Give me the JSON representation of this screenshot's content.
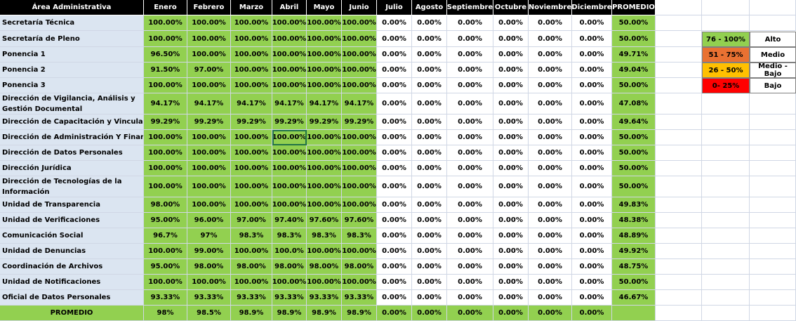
{
  "header": {
    "area": "Área Administrativa",
    "months": [
      "Enero",
      "Febrero",
      "Marzo",
      "Abril",
      "Mayo",
      "Junio",
      "Julio",
      "Agosto",
      "Septiembre",
      "Octubre",
      "Noviembre",
      "Diciembre"
    ],
    "promedio": "PROMEDIO"
  },
  "rows": [
    {
      "area": "Secretaría Técnica",
      "values": [
        "100.00%",
        "100.00%",
        "100.00%",
        "100.00%",
        "100.00%",
        "100.00%",
        "0.00%",
        "0.00%",
        "0.00%",
        "0.00%",
        "0.00%",
        "0.00%"
      ],
      "avg": "50.00%"
    },
    {
      "area": "Secretaría de Pleno",
      "values": [
        "100.00%",
        "100.00%",
        "100.00%",
        "100.00%",
        "100.00%",
        "100.00%",
        "0.00%",
        "0.00%",
        "0.00%",
        "0.00%",
        "0.00%",
        "0.00%"
      ],
      "avg": "50.00%"
    },
    {
      "area": "Ponencia 1",
      "values": [
        "96.50%",
        "100.00%",
        "100.00%",
        "100.00%",
        "100.00%",
        "100.00%",
        "0.00%",
        "0.00%",
        "0.00%",
        "0.00%",
        "0.00%",
        "0.00%"
      ],
      "avg": "49.71%"
    },
    {
      "area": "Ponencia 2",
      "values": [
        "91.50%",
        "97.00%",
        "100.00%",
        "100.00%",
        "100.00%",
        "100.00%",
        "0.00%",
        "0.00%",
        "0.00%",
        "0.00%",
        "0.00%",
        "0.00%"
      ],
      "avg": "49.04%"
    },
    {
      "area": "Ponencia 3",
      "values": [
        "100.00%",
        "100.00%",
        "100.00%",
        "100.00%",
        "100.00%",
        "100.00%",
        "0.00%",
        "0.00%",
        "0.00%",
        "0.00%",
        "0.00%",
        "0.00%"
      ],
      "avg": "50.00%"
    },
    {
      "area": "Dirección de Vigilancia, Análisis y Gestión Documental",
      "values": [
        "94.17%",
        "94.17%",
        "94.17%",
        "94.17%",
        "94.17%",
        "94.17%",
        "0.00%",
        "0.00%",
        "0.00%",
        "0.00%",
        "0.00%",
        "0.00%"
      ],
      "avg": "47.08%"
    },
    {
      "area": "Dirección de Capacitación y Vinculación",
      "values": [
        "99.29%",
        "99.29%",
        "99.29%",
        "99.29%",
        "99.29%",
        "99.29%",
        "0.00%",
        "0.00%",
        "0.00%",
        "0.00%",
        "0.00%",
        "0.00%"
      ],
      "avg": "49.64%"
    },
    {
      "area": "Dirección de Administración Y Finanzas",
      "values": [
        "100.00%",
        "100.00%",
        "100.00%",
        "100.00%",
        "100.00%",
        "100.00%",
        "0.00%",
        "0.00%",
        "0.00%",
        "0.00%",
        "0.00%",
        "0.00%"
      ],
      "avg": "50.00%"
    },
    {
      "area": "Dirección de Datos Personales",
      "values": [
        "100.00%",
        "100.00%",
        "100.00%",
        "100.00%",
        "100.00%",
        "100.00%",
        "0.00%",
        "0.00%",
        "0.00%",
        "0.00%",
        "0.00%",
        "0.00%"
      ],
      "avg": "50.00%"
    },
    {
      "area": "Dirección Jurídica",
      "values": [
        "100.00%",
        "100.00%",
        "100.00%",
        "100.00%",
        "100.00%",
        "100.00%",
        "0.00%",
        "0.00%",
        "0.00%",
        "0.00%",
        "0.00%",
        "0.00%"
      ],
      "avg": "50.00%"
    },
    {
      "area": "Dirección de Tecnologías de la Información",
      "values": [
        "100.00%",
        "100.00%",
        "100.00%",
        "100.00%",
        "100.00%",
        "100.00%",
        "0.00%",
        "0.00%",
        "0.00%",
        "0.00%",
        "0.00%",
        "0.00%"
      ],
      "avg": "50.00%"
    },
    {
      "area": "Unidad de Transparencia",
      "values": [
        "98.00%",
        "100.00%",
        "100.00%",
        "100.00%",
        "100.00%",
        "100.00%",
        "0.00%",
        "0.00%",
        "0.00%",
        "0.00%",
        "0.00%",
        "0.00%"
      ],
      "avg": "49.83%"
    },
    {
      "area": "Unidad de Verificaciones",
      "values": [
        "95.00%",
        "96.00%",
        "97.00%",
        "97.40%",
        "97.60%",
        "97.60%",
        "0.00%",
        "0.00%",
        "0.00%",
        "0.00%",
        "0.00%",
        "0.00%"
      ],
      "avg": "48.38%"
    },
    {
      "area": "Comunicación Social",
      "values": [
        "96.7%",
        "97%",
        "98.3%",
        "98.3%",
        "98.3%",
        "98.3%",
        "0.00%",
        "0.00%",
        "0.00%",
        "0.00%",
        "0.00%",
        "0.00%"
      ],
      "avg": "48.89%"
    },
    {
      "area": "Unidad de Denuncias",
      "values": [
        "100.00%",
        "99.00%",
        "100.00%",
        "100.0%",
        "100.00%",
        "100.00%",
        "0.00%",
        "0.00%",
        "0.00%",
        "0.00%",
        "0.00%",
        "0.00%"
      ],
      "avg": "49.92%"
    },
    {
      "area": "Coordinación de Archivos",
      "values": [
        "95.00%",
        "98.00%",
        "98.00%",
        "98.00%",
        "98.00%",
        "98.00%",
        "0.00%",
        "0.00%",
        "0.00%",
        "0.00%",
        "0.00%",
        "0.00%"
      ],
      "avg": "48.75%"
    },
    {
      "area": "Unidad de Notificaciones",
      "values": [
        "100.00%",
        "100.00%",
        "100.00%",
        "100.00%",
        "100.00%",
        "100.00%",
        "0.00%",
        "0.00%",
        "0.00%",
        "0.00%",
        "0.00%",
        "0.00%"
      ],
      "avg": "50.00%"
    },
    {
      "area": "Oficial de Datos Personales",
      "values": [
        "93.33%",
        "93.33%",
        "93.33%",
        "93.33%",
        "93.33%",
        "93.33%",
        "0.00%",
        "0.00%",
        "0.00%",
        "0.00%",
        "0.00%",
        "0.00%"
      ],
      "avg": "46.67%"
    }
  ],
  "footer": {
    "label": "PROMEDIO",
    "values": [
      "98%",
      "98.5%",
      "98.9%",
      "98.9%",
      "98.9%",
      "98.9%",
      "0.00%",
      "0.00%",
      "0.00%",
      "0.00%",
      "0.00%",
      "0.00%"
    ]
  },
  "legend": [
    {
      "range": "76 - 100%",
      "label": "Alto",
      "color": "#92d050"
    },
    {
      "range": "51 - 75%",
      "label": "Medio",
      "color": "#e97132"
    },
    {
      "range": "26 - 50%",
      "label": "Medio - Bajo",
      "color": "#ffc000"
    },
    {
      "range": "0- 25%",
      "label": "Bajo",
      "color": "#ff0000"
    }
  ],
  "colors": {
    "high": "#92d050",
    "area_bg": "#dbe5f1",
    "header_bg": "#000000",
    "grid": "#d0d7e5"
  }
}
